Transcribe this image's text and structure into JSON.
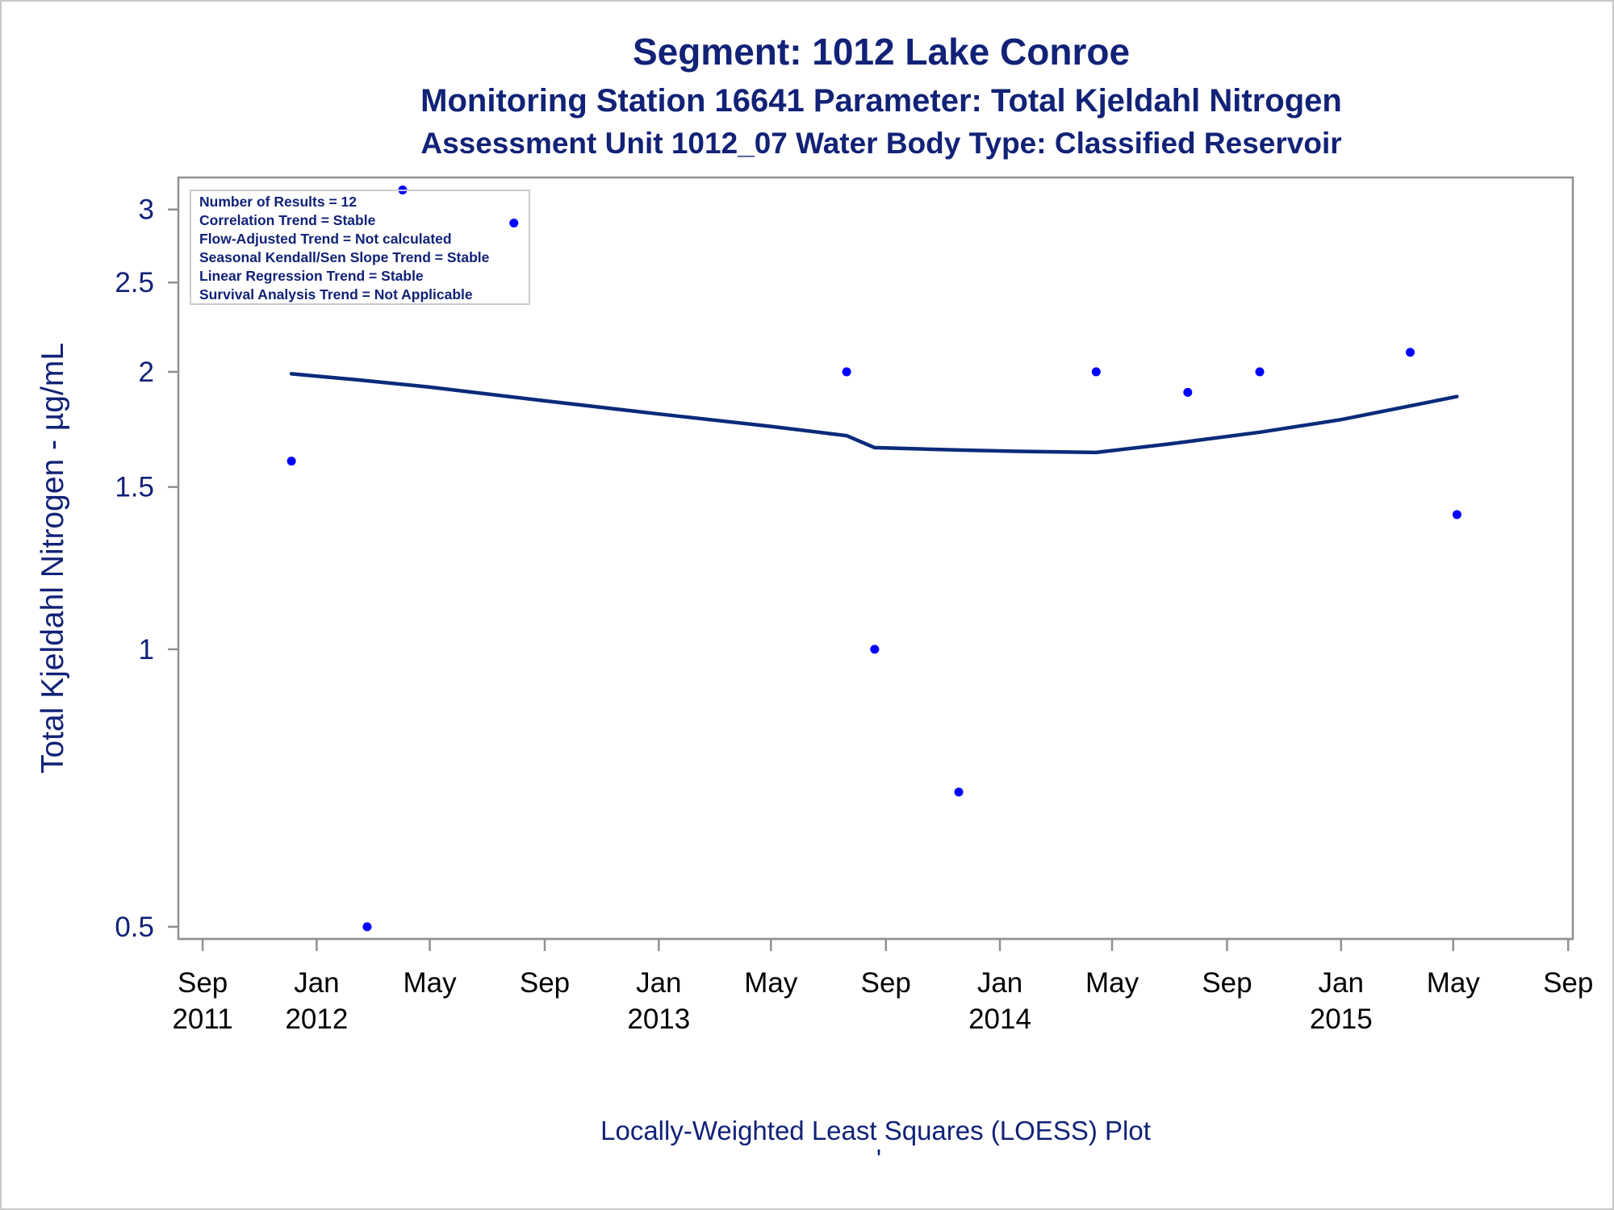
{
  "colors": {
    "title": "#112277",
    "loess_line": "#0a2a7a",
    "points": "#0000ff",
    "axis": "#909090",
    "frame": "#c8c8c8"
  },
  "titles": {
    "line1": "Segment: 1012  Lake Conroe",
    "line2": "Monitoring Station 16641 Parameter: Total Kjeldahl Nitrogen",
    "line3": "Assessment Unit 1012_07   Water Body Type: Classified Reservoir"
  },
  "stats_box": {
    "lines": [
      "Number of Results = 12",
      "Correlation Trend = Stable",
      "Flow-Adjusted Trend = Not calculated",
      "Seasonal Kendall/Sen Slope Trend = Stable",
      "Linear Regression Trend = Stable",
      "Survival Analysis Trend = Not Applicable"
    ]
  },
  "footer": {
    "text": "Locally-Weighted Least Squares (LOESS) Plot",
    "mark": "'"
  },
  "chart_data": {
    "type": "scatter",
    "y_scale": "log",
    "ylabel": "Total Kjeldahl Nitrogen -  µg/mL",
    "xlabel": "",
    "ylim": [
      0.485,
      3.25
    ],
    "xlim": [
      "2011-08-06",
      "2015-09-06"
    ],
    "yticks": [
      {
        "value": 0.5,
        "label": "0.5"
      },
      {
        "value": 1,
        "label": "1"
      },
      {
        "value": 1.5,
        "label": "1.5"
      },
      {
        "value": 2,
        "label": "2"
      },
      {
        "value": 2.5,
        "label": "2.5"
      },
      {
        "value": 3,
        "label": "3"
      }
    ],
    "xticks": [
      {
        "date": "2011-09-01",
        "label": "Sep",
        "year": "2011"
      },
      {
        "date": "2012-01-01",
        "label": "Jan",
        "year": "2012"
      },
      {
        "date": "2012-05-01",
        "label": "May",
        "year": ""
      },
      {
        "date": "2012-09-01",
        "label": "Sep",
        "year": ""
      },
      {
        "date": "2013-01-01",
        "label": "Jan",
        "year": "2013"
      },
      {
        "date": "2013-05-01",
        "label": "May",
        "year": ""
      },
      {
        "date": "2013-09-01",
        "label": "Sep",
        "year": ""
      },
      {
        "date": "2014-01-01",
        "label": "Jan",
        "year": "2014"
      },
      {
        "date": "2014-05-01",
        "label": "May",
        "year": ""
      },
      {
        "date": "2014-09-01",
        "label": "Sep",
        "year": ""
      },
      {
        "date": "2015-01-01",
        "label": "Jan",
        "year": "2015"
      },
      {
        "date": "2015-05-01",
        "label": "May",
        "year": ""
      },
      {
        "date": "2015-09-01",
        "label": "Sep",
        "year": ""
      }
    ],
    "points": [
      {
        "x": "2011-12-05",
        "y": 1.6
      },
      {
        "x": "2012-02-24",
        "y": 0.5
      },
      {
        "x": "2012-04-02",
        "y": 3.15
      },
      {
        "x": "2012-07-30",
        "y": 2.9
      },
      {
        "x": "2013-07-21",
        "y": 2.0
      },
      {
        "x": "2013-08-20",
        "y": 1.0
      },
      {
        "x": "2013-11-18",
        "y": 0.7
      },
      {
        "x": "2014-04-14",
        "y": 2.0
      },
      {
        "x": "2014-07-21",
        "y": 1.9
      },
      {
        "x": "2014-10-06",
        "y": 2.0
      },
      {
        "x": "2015-03-16",
        "y": 2.1
      },
      {
        "x": "2015-05-05",
        "y": 1.4
      }
    ],
    "loess": [
      {
        "x": "2011-12-05",
        "y": 1.99
      },
      {
        "x": "2012-02-15",
        "y": 1.96
      },
      {
        "x": "2012-05-01",
        "y": 1.925
      },
      {
        "x": "2012-09-01",
        "y": 1.86
      },
      {
        "x": "2013-01-01",
        "y": 1.8
      },
      {
        "x": "2013-05-01",
        "y": 1.745
      },
      {
        "x": "2013-07-21",
        "y": 1.705
      },
      {
        "x": "2013-08-20",
        "y": 1.655
      },
      {
        "x": "2013-11-18",
        "y": 1.645
      },
      {
        "x": "2014-01-15",
        "y": 1.64
      },
      {
        "x": "2014-04-14",
        "y": 1.635
      },
      {
        "x": "2014-07-01",
        "y": 1.67
      },
      {
        "x": "2014-10-06",
        "y": 1.72
      },
      {
        "x": "2015-01-01",
        "y": 1.775
      },
      {
        "x": "2015-05-05",
        "y": 1.88
      }
    ]
  }
}
